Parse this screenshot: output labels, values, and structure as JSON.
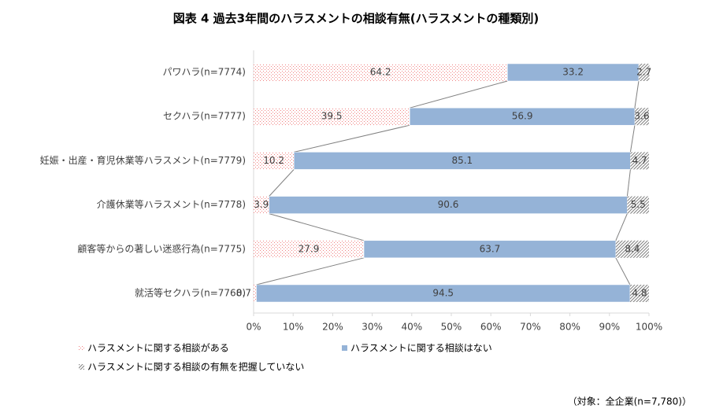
{
  "chart_data": {
    "type": "stacked_bar_horizontal",
    "title": "図表 4 過去3年間のハラスメントの相談有無(ハラスメントの種類別)",
    "note": "（対象：全企業(n=7,780)）",
    "categories": [
      "パワハラ(n=7774)",
      "セクハラ(n=7777)",
      "妊娠・出産・育児休業等ハラスメント(n=7779)",
      "介護休業等ハラスメント(n=7778)",
      "顧客等からの著しい迷惑行為(n=7775)",
      "就活等セクハラ(n=7768)"
    ],
    "series": [
      {
        "name": "ハラスメントに関する相談がある",
        "color": "#f08080",
        "pattern": "dots",
        "values": [
          64.2,
          39.5,
          10.2,
          3.9,
          27.9,
          0.7
        ]
      },
      {
        "name": "ハラスメントに関する相談はない",
        "color": "#95b3d7",
        "pattern": "solid",
        "values": [
          33.2,
          56.9,
          85.1,
          90.6,
          63.7,
          94.5
        ]
      },
      {
        "name": "ハラスメントに関する相談の有無を把握していない",
        "color": "#808080",
        "pattern": "hatch",
        "values": [
          2.7,
          3.6,
          4.7,
          5.5,
          8.4,
          4.8
        ]
      }
    ],
    "xlim": [
      0,
      100
    ],
    "xticks": [
      {
        "value": 0,
        "label": "0%"
      },
      {
        "value": 10,
        "label": "10%"
      },
      {
        "value": 20,
        "label": "20%"
      },
      {
        "value": 30,
        "label": "30%"
      },
      {
        "value": 40,
        "label": "40%"
      },
      {
        "value": 50,
        "label": "50%"
      },
      {
        "value": 60,
        "label": "60%"
      },
      {
        "value": 70,
        "label": "70%"
      },
      {
        "value": 80,
        "label": "80%"
      },
      {
        "value": 90,
        "label": "90%"
      },
      {
        "value": 100,
        "label": "100%"
      }
    ],
    "series_lines": true
  }
}
